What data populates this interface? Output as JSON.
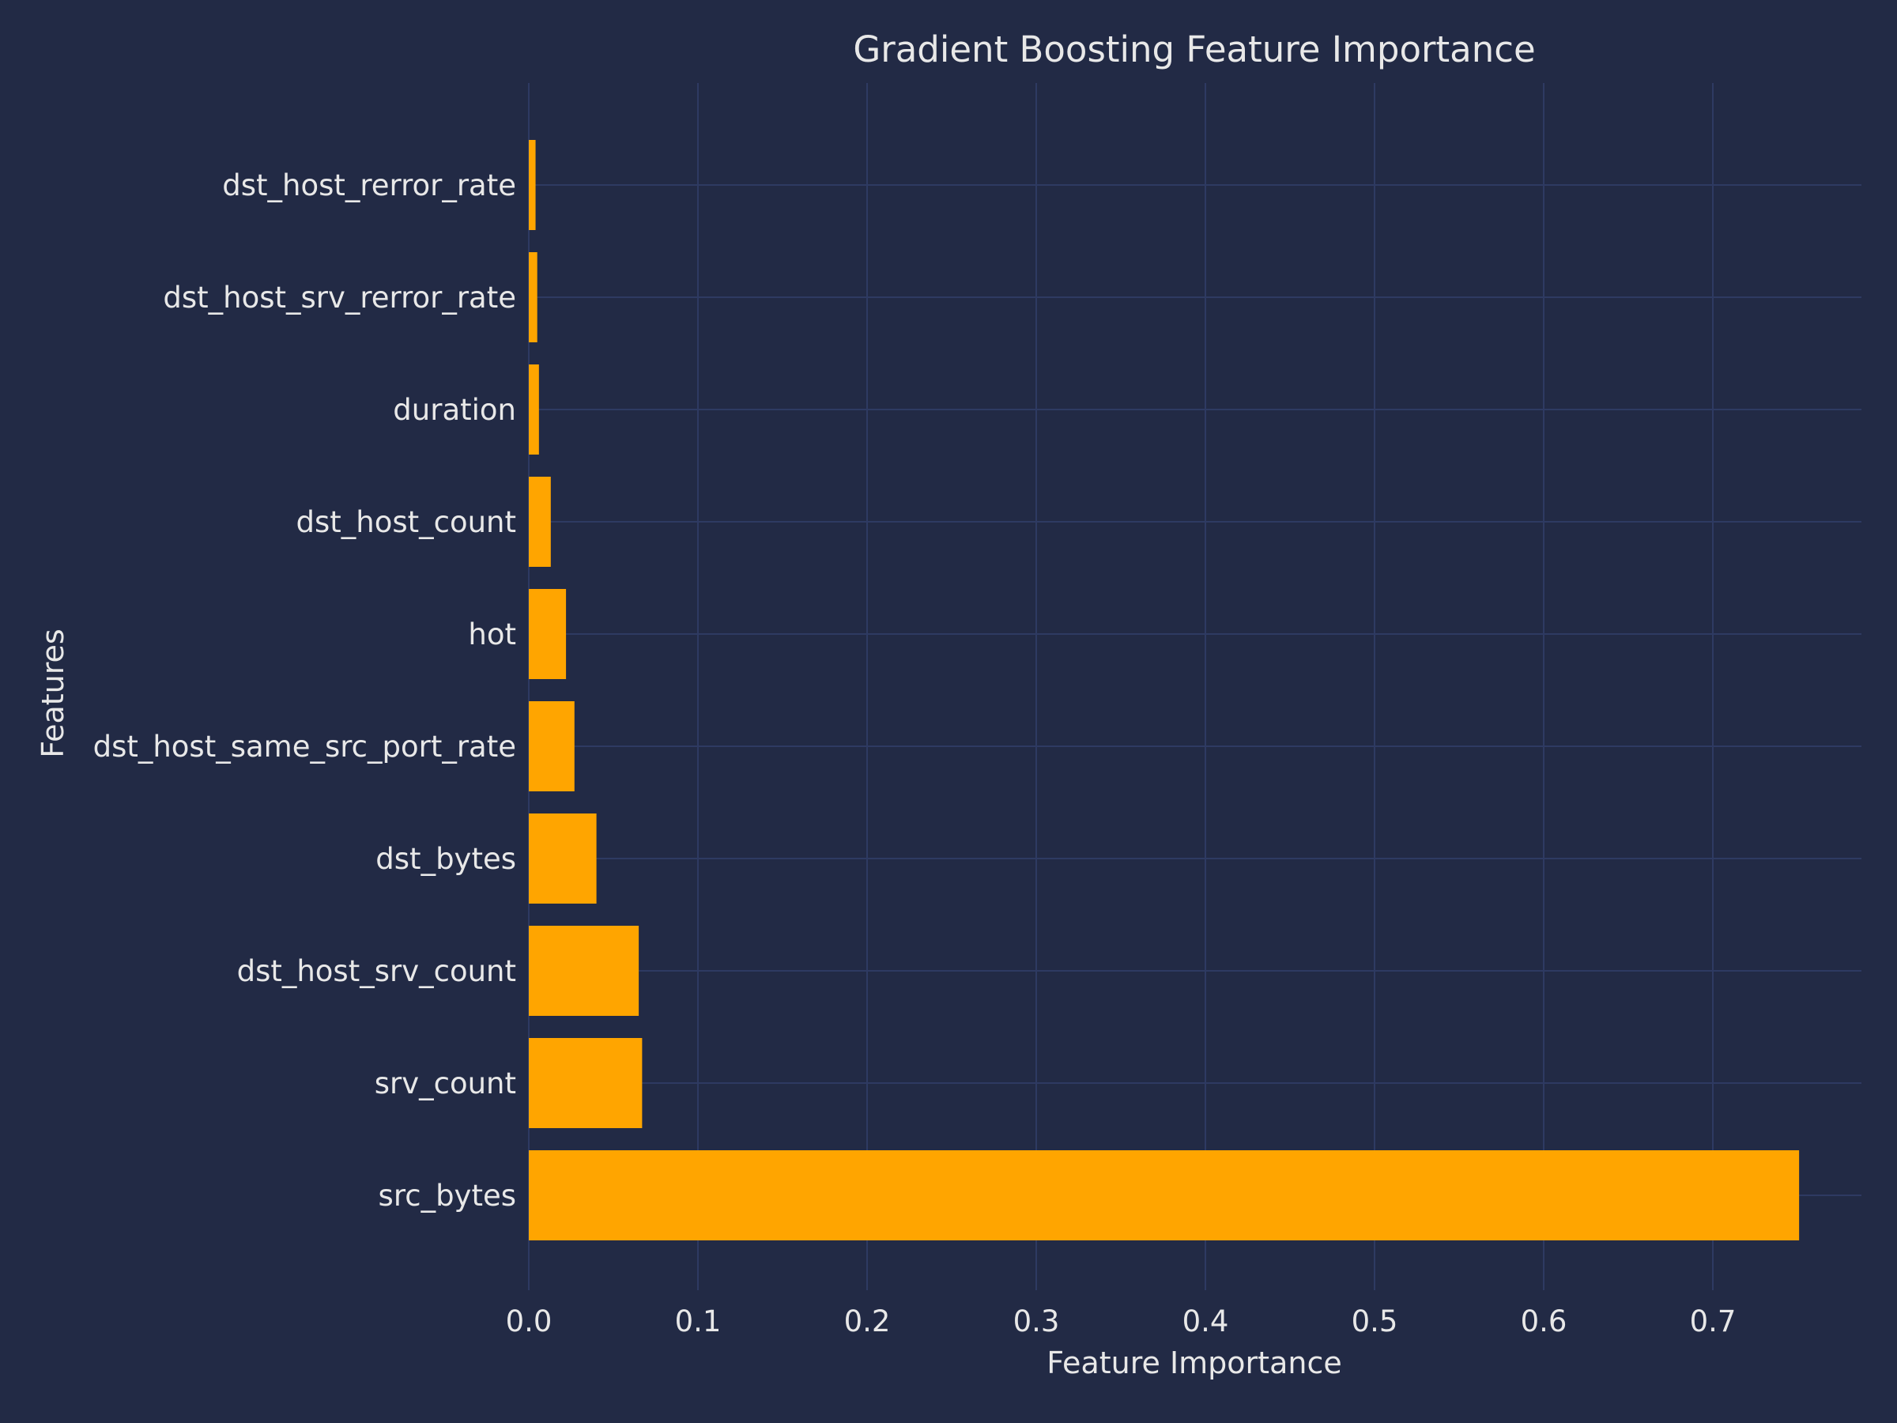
{
  "chart_data": {
    "type": "bar",
    "orientation": "horizontal",
    "title": "Gradient Boosting Feature Importance",
    "xlabel": "Feature Importance",
    "ylabel": "Features",
    "categories": [
      "dst_host_rerror_rate",
      "dst_host_srv_rerror_rate",
      "duration",
      "dst_host_count",
      "hot",
      "dst_host_same_src_port_rate",
      "dst_bytes",
      "dst_host_srv_count",
      "srv_count",
      "src_bytes"
    ],
    "values": [
      0.004,
      0.005,
      0.006,
      0.013,
      0.022,
      0.027,
      0.04,
      0.065,
      0.067,
      0.751
    ],
    "xlim": [
      0,
      0.788
    ],
    "xticks": [
      "0.0",
      "0.1",
      "0.2",
      "0.3",
      "0.4",
      "0.5",
      "0.6",
      "0.7"
    ],
    "grid": true,
    "colors": {
      "background": "#222a45",
      "bar": "#ffa500",
      "grid": "#2e3a62",
      "text": "#e8e8e8"
    }
  }
}
